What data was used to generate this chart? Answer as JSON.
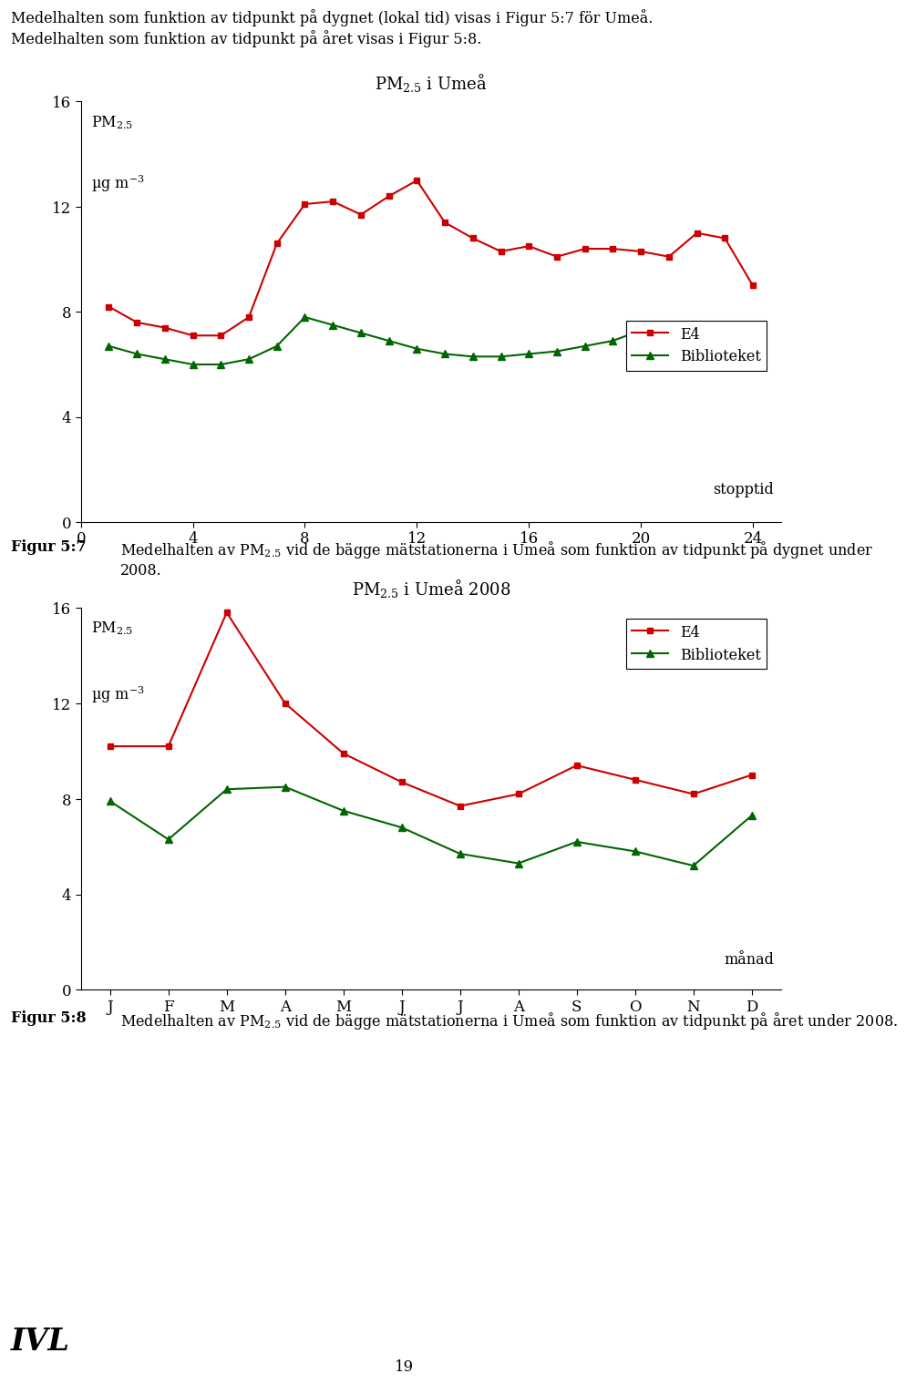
{
  "chart1": {
    "title": "PM$_{2.5}$ i Umeå",
    "e4_x": [
      1,
      2,
      3,
      4,
      5,
      6,
      7,
      8,
      9,
      10,
      11,
      12,
      13,
      14,
      15,
      16,
      17,
      18,
      19,
      20,
      21,
      22,
      23,
      24
    ],
    "e4_y": [
      8.2,
      7.6,
      7.4,
      7.1,
      7.1,
      7.8,
      10.6,
      12.1,
      12.2,
      11.7,
      12.4,
      13.0,
      11.4,
      10.8,
      10.3,
      10.5,
      10.1,
      10.4,
      10.4,
      10.3,
      10.1,
      11.0,
      10.8,
      9.0
    ],
    "bib_x": [
      1,
      2,
      3,
      4,
      5,
      6,
      7,
      8,
      9,
      10,
      11,
      12,
      13,
      14,
      15,
      16,
      17,
      18,
      19,
      20,
      21,
      22,
      23,
      24
    ],
    "bib_y": [
      6.7,
      6.4,
      6.2,
      6.0,
      6.0,
      6.2,
      6.7,
      7.8,
      7.5,
      7.2,
      6.9,
      6.6,
      6.4,
      6.3,
      6.3,
      6.4,
      6.5,
      6.7,
      6.9,
      7.3,
      7.4,
      7.4,
      7.3,
      7.0
    ],
    "xlabel_text": "stopptid",
    "xlim": [
      0,
      25
    ],
    "ylim": [
      0,
      16
    ],
    "xticks": [
      0,
      4,
      8,
      12,
      16,
      20,
      24
    ],
    "yticks": [
      0,
      4,
      8,
      12,
      16
    ]
  },
  "chart2": {
    "title": "PM$_{2.5}$ i Umeå 2008",
    "e4_x": [
      0,
      1,
      2,
      3,
      4,
      5,
      6,
      7,
      8,
      9,
      10,
      11
    ],
    "e4_y": [
      10.2,
      10.2,
      15.8,
      12.0,
      9.9,
      8.7,
      7.7,
      8.2,
      9.4,
      8.8,
      8.2,
      9.0
    ],
    "bib_x": [
      0,
      1,
      2,
      3,
      4,
      5,
      6,
      7,
      8,
      9,
      10,
      11
    ],
    "bib_y": [
      7.9,
      6.3,
      8.4,
      8.5,
      7.5,
      6.8,
      5.7,
      5.3,
      6.2,
      5.8,
      5.2,
      7.3
    ],
    "xlabel_text": "månad",
    "xticklabels": [
      "J",
      "F",
      "M",
      "A",
      "M",
      "J",
      "J",
      "A",
      "S",
      "O",
      "N",
      "D"
    ],
    "ylim": [
      0,
      16
    ],
    "yticks": [
      0,
      4,
      8,
      12,
      16
    ]
  },
  "e4_color": "#cc0000",
  "bib_color": "#006600",
  "background_color": "#ffffff",
  "text_intro_line1": "Medelhalten som funktion av tidpunkt på dygnet (lokal tid) visas i Figur 5:7 för Umeå.",
  "text_intro_line2": "Medelhalten som funktion av tidpunkt på året visas i Figur 5:8.",
  "caption1_bold": "Figur 5:7",
  "caption1_text": "Medelhalten av PM$_{2.5}$ vid de bägge mätstationerna i Umeå som funktion av tidpunkt på dygnet under 2008.",
  "caption2_bold": "Figur 5:8",
  "caption2_text": "Medelhalten av PM$_{2.5}$ vid de bägge mätstationerna i Umeå som funktion av tidpunkt på året under 2008.",
  "page_number": "19",
  "ylabel_line1": "PM$_{2.5}$",
  "ylabel_line2": "µg m$^{-3}$"
}
